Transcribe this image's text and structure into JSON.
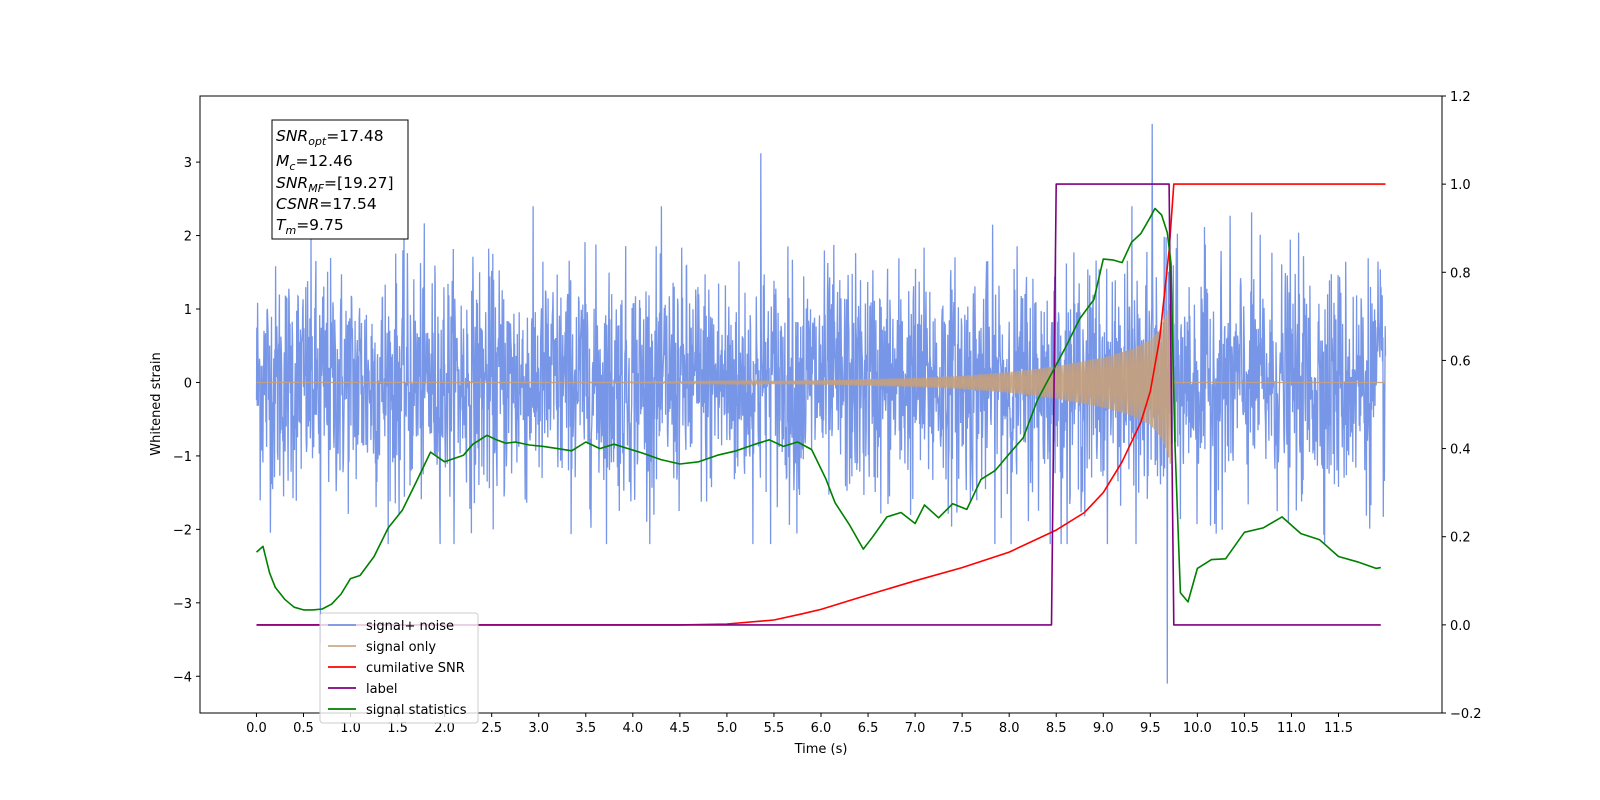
{
  "chart_data": {
    "type": "line",
    "title": "",
    "xlabel": "Time (s)",
    "ylabel": "Whitened strain",
    "xlim": [
      -0.6,
      12.6
    ],
    "ylim": [
      -4.5,
      3.9
    ],
    "y2lim": [
      -0.2,
      1.2
    ],
    "x_ticks": [
      0.0,
      0.5,
      1.0,
      1.5,
      2.0,
      2.5,
      3.0,
      3.5,
      4.0,
      4.5,
      5.0,
      5.5,
      6.0,
      6.5,
      7.0,
      7.5,
      8.0,
      8.5,
      9.0,
      9.5,
      10.0,
      10.5,
      11.0,
      11.5
    ],
    "x_tick_labels": [
      "0.0",
      "0.5",
      "1.0",
      "1.5",
      "2.0",
      "2.5",
      "3.0",
      "3.5",
      "4.0",
      "4.5",
      "5.0",
      "5.5",
      "6.0",
      "6.5",
      "7.0",
      "7.5",
      "8.0",
      "8.5",
      "9.0",
      "9.5",
      "10.0",
      "10.5",
      "11.0",
      "11.5"
    ],
    "y_ticks": [
      -4,
      -3,
      -2,
      -1,
      0,
      1,
      2,
      3
    ],
    "y_tick_labels": [
      "−4",
      "−3",
      "−2",
      "−1",
      "0",
      "1",
      "2",
      "3"
    ],
    "y2_ticks": [
      -0.2,
      0.0,
      0.2,
      0.4,
      0.6,
      0.8,
      1.0,
      1.2
    ],
    "y2_tick_labels": [
      "−0.2",
      "0.0",
      "0.2",
      "0.4",
      "0.6",
      "0.8",
      "1.0",
      "1.2"
    ],
    "grid": false,
    "legend_position": "bottom-left",
    "annotation": [
      {
        "symbol": "SNR",
        "sub": "opt",
        "value": "=17.48"
      },
      {
        "symbol": "M",
        "sub": "c",
        "value": "=12.46"
      },
      {
        "symbol": "SNR",
        "sub": "MF",
        "value": "=[19.27]"
      },
      {
        "symbol": "CSNR",
        "sub": "",
        "value": "=17.54"
      },
      {
        "symbol": "T",
        "sub": "m",
        "value": "=9.75"
      }
    ],
    "series": [
      {
        "name": "signal+ noise",
        "axis": "left",
        "color": "#7090e6",
        "noise_std": 0.78,
        "envelope_peak_time": 9.72,
        "max_observed": 3.52,
        "min_observed": -4.1
      },
      {
        "name": "signal only",
        "axis": "left",
        "color": "#c7a07a",
        "envelope": {
          "x": [
            0.0,
            4.0,
            5.0,
            6.0,
            7.0,
            7.5,
            8.0,
            8.5,
            9.0,
            9.3,
            9.5,
            9.6,
            9.68,
            9.72,
            9.75,
            12.0
          ],
          "y": [
            0.0,
            0.005,
            0.015,
            0.03,
            0.06,
            0.09,
            0.14,
            0.22,
            0.34,
            0.45,
            0.58,
            0.72,
            0.95,
            1.15,
            0.0,
            0.0
          ]
        }
      },
      {
        "name": "cumilative SNR",
        "axis": "right",
        "color": "#ff0000",
        "x": [
          0.0,
          4.5,
          5.0,
          5.5,
          5.8,
          6.0,
          6.5,
          7.0,
          7.5,
          8.0,
          8.5,
          8.8,
          9.0,
          9.2,
          9.4,
          9.5,
          9.6,
          9.7,
          9.75,
          12.0
        ],
        "y": [
          0.0,
          0.0,
          0.002,
          0.011,
          0.025,
          0.035,
          0.068,
          0.1,
          0.13,
          0.165,
          0.215,
          0.255,
          0.3,
          0.37,
          0.46,
          0.53,
          0.65,
          0.85,
          1.0,
          1.0
        ]
      },
      {
        "name": "label",
        "axis": "right",
        "color": "#800080",
        "x": [
          0.0,
          8.45,
          8.5,
          9.7,
          9.75,
          11.95
        ],
        "y": [
          0.0,
          0.0,
          1.0,
          1.0,
          0.0,
          0.0
        ]
      },
      {
        "name": "signal statistics",
        "axis": "right",
        "color": "#008000",
        "x": [
          0.0,
          0.07,
          0.14,
          0.2,
          0.3,
          0.4,
          0.5,
          0.6,
          0.7,
          0.8,
          0.9,
          1.0,
          1.1,
          1.25,
          1.4,
          1.55,
          1.7,
          1.85,
          2.0,
          2.2,
          2.3,
          2.45,
          2.55,
          2.65,
          2.75,
          2.9,
          3.05,
          3.2,
          3.35,
          3.5,
          3.65,
          3.8,
          3.95,
          4.1,
          4.3,
          4.5,
          4.7,
          4.9,
          5.1,
          5.3,
          5.45,
          5.6,
          5.75,
          5.9,
          6.05,
          6.15,
          6.3,
          6.45,
          6.55,
          6.7,
          6.85,
          7.0,
          7.1,
          7.25,
          7.4,
          7.55,
          7.7,
          7.85,
          8.0,
          8.15,
          8.3,
          8.45,
          8.6,
          8.75,
          8.9,
          9.0,
          9.1,
          9.2,
          9.3,
          9.4,
          9.5,
          9.55,
          9.62,
          9.68,
          9.72,
          9.76,
          9.82,
          9.9,
          10.0,
          10.15,
          10.3,
          10.5,
          10.7,
          10.9,
          11.1,
          11.3,
          11.5,
          11.7,
          11.9,
          11.95
        ],
        "y": [
          0.165,
          0.178,
          0.118,
          0.085,
          0.058,
          0.04,
          0.034,
          0.034,
          0.036,
          0.047,
          0.07,
          0.105,
          0.112,
          0.155,
          0.22,
          0.26,
          0.325,
          0.392,
          0.37,
          0.385,
          0.41,
          0.43,
          0.42,
          0.412,
          0.415,
          0.408,
          0.405,
          0.4,
          0.395,
          0.415,
          0.4,
          0.41,
          0.4,
          0.39,
          0.375,
          0.365,
          0.37,
          0.385,
          0.395,
          0.41,
          0.42,
          0.405,
          0.415,
          0.398,
          0.332,
          0.277,
          0.228,
          0.172,
          0.2,
          0.245,
          0.255,
          0.23,
          0.272,
          0.243,
          0.275,
          0.262,
          0.33,
          0.35,
          0.388,
          0.425,
          0.51,
          0.57,
          0.63,
          0.695,
          0.738,
          0.83,
          0.828,
          0.822,
          0.868,
          0.888,
          0.925,
          0.945,
          0.93,
          0.89,
          0.82,
          0.42,
          0.073,
          0.052,
          0.128,
          0.148,
          0.15,
          0.21,
          0.22,
          0.245,
          0.207,
          0.193,
          0.155,
          0.143,
          0.128,
          0.13
        ]
      }
    ]
  }
}
